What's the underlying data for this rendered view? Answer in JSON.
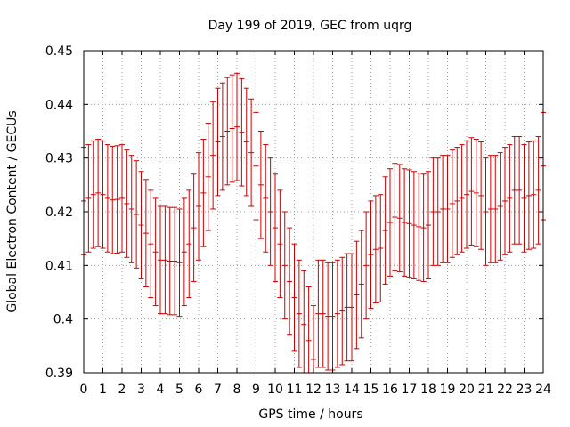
{
  "chart_data": {
    "type": "errorbar",
    "title": "Day 199 of 2019, GEC from uqrg",
    "xlabel": "GPS time / hours",
    "ylabel": "Global Electron Content / GECUs",
    "xlim": [
      0,
      24
    ],
    "ylim": [
      0.39,
      0.45
    ],
    "grid": true,
    "xticks": [
      "0",
      "1",
      "2",
      "3",
      "4",
      "5",
      "6",
      "7",
      "8",
      "9",
      "10",
      "11",
      "12",
      "13",
      "14",
      "15",
      "16",
      "17",
      "18",
      "19",
      "20",
      "21",
      "22",
      "23",
      "24"
    ],
    "yticks": [
      "0.39",
      "0.4",
      "0.41",
      "0.42",
      "0.43",
      "0.44",
      "0.45"
    ],
    "series": [
      {
        "name": "GEC",
        "color": "#cc0000",
        "error": 0.01,
        "x": [
          0,
          0.25,
          0.5,
          0.75,
          1,
          1.25,
          1.5,
          1.75,
          2,
          2.25,
          2.5,
          2.75,
          3,
          3.25,
          3.5,
          3.75,
          4,
          4.25,
          4.5,
          4.75,
          5,
          5.25,
          5.5,
          5.75,
          6,
          6.25,
          6.5,
          6.75,
          7,
          7.25,
          7.5,
          7.75,
          8,
          8.25,
          8.5,
          8.75,
          9,
          9.25,
          9.5,
          9.75,
          10,
          10.25,
          10.5,
          10.75,
          11,
          11.25,
          11.5,
          11.75,
          12,
          12.25,
          12.5,
          12.75,
          13,
          13.25,
          13.5,
          13.75,
          14,
          14.25,
          14.5,
          14.75,
          15,
          15.25,
          15.5,
          15.75,
          16,
          16.25,
          16.5,
          16.75,
          17,
          17.25,
          17.5,
          17.75,
          18,
          18.25,
          18.5,
          18.75,
          19,
          19.25,
          19.5,
          19.75,
          20,
          20.25,
          20.5,
          20.75,
          21,
          21.25,
          21.5,
          21.75,
          22,
          22.25,
          22.5,
          22.75,
          23,
          23.25,
          23.5,
          23.75,
          24
        ],
        "y": [
          0.422,
          0.4225,
          0.4232,
          0.4235,
          0.4232,
          0.4225,
          0.4222,
          0.4223,
          0.4225,
          0.4215,
          0.4205,
          0.4195,
          0.4175,
          0.416,
          0.414,
          0.4125,
          0.411,
          0.411,
          0.4108,
          0.4108,
          0.4105,
          0.4125,
          0.414,
          0.417,
          0.421,
          0.4235,
          0.4265,
          0.4305,
          0.433,
          0.434,
          0.435,
          0.4355,
          0.4358,
          0.4348,
          0.433,
          0.431,
          0.4285,
          0.425,
          0.4225,
          0.42,
          0.417,
          0.414,
          0.41,
          0.407,
          0.404,
          0.401,
          0.399,
          0.396,
          0.3925,
          0.401,
          0.401,
          0.4005,
          0.4005,
          0.401,
          0.4015,
          0.4022,
          0.4022,
          0.4045,
          0.4065,
          0.41,
          0.412,
          0.413,
          0.4132,
          0.4165,
          0.418,
          0.419,
          0.4188,
          0.418,
          0.4178,
          0.4175,
          0.4172,
          0.417,
          0.4175,
          0.42,
          0.42,
          0.4205,
          0.4205,
          0.4215,
          0.422,
          0.4225,
          0.4232,
          0.4238,
          0.4235,
          0.423,
          0.42,
          0.4205,
          0.4205,
          0.421,
          0.422,
          0.4225,
          0.424,
          0.424,
          0.4225,
          0.423,
          0.4232,
          0.424,
          0.4285
        ]
      }
    ]
  }
}
